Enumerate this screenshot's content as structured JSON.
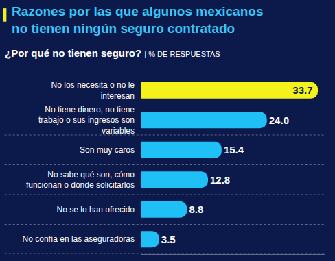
{
  "chart_data": {
    "type": "bar",
    "orientation": "horizontal",
    "title": "Razones por las que algunos mexicanos no tienen ningún seguro contratado",
    "subtitle": "¿Por qué no tienen seguro? | % DE RESPUESTAS",
    "categories": [
      "No los necesita o no le interesan",
      "No tiene dinero, no tiene trabajo o sus ingresos son variables",
      "Son muy caros",
      "No sabe qué son, cómo funcionan o dónde solicitarlos",
      "No se lo han ofrecido",
      "No confía en las aseguradoras"
    ],
    "values": [
      33.7,
      24.0,
      15.4,
      12.8,
      8.8,
      3.5
    ],
    "value_labels": [
      "33.7",
      "24.0",
      "15.4",
      "12.8",
      "8.8",
      "3.5"
    ],
    "colors": [
      "#f5f21b",
      "#1ec0f5",
      "#1ec0f5",
      "#1ec0f5",
      "#1ec0f5",
      "#1ec0f5"
    ],
    "xlim": [
      0,
      35
    ],
    "data_labels": true,
    "tick_labels": "y",
    "grid": false
  }
}
